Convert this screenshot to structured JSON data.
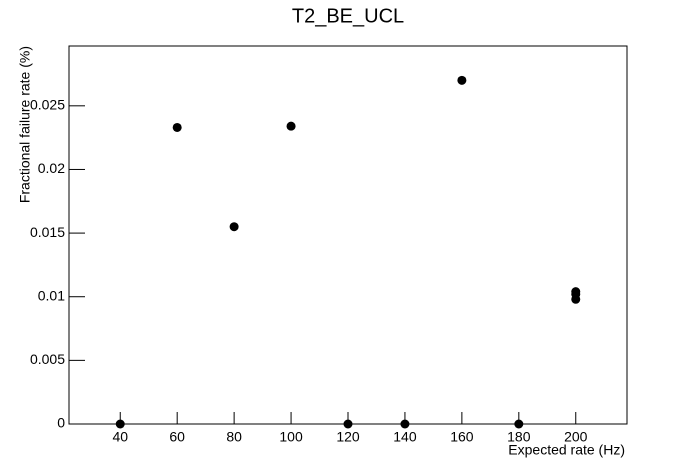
{
  "chart_data": {
    "type": "scatter",
    "title": "T2_BE_UCL",
    "x_label": "Expected rate (Hz)",
    "y_label": "Fractional failure rate (%)",
    "x": [
      40,
      60,
      80,
      100,
      120,
      140,
      160,
      180,
      200,
      200,
      200
    ],
    "y": [
      0,
      0.0233,
      0.0155,
      0.0234,
      0,
      0,
      0.027,
      0,
      0.0104,
      0.0102,
      0.0098
    ],
    "color": "#000000",
    "xlim": [
      22,
      218
    ],
    "ylim": [
      0,
      0.0297
    ],
    "xticks": [
      40,
      60,
      80,
      100,
      120,
      140,
      160,
      180,
      200
    ],
    "yticks": [
      0,
      0.005,
      0.01,
      0.015,
      0.02,
      0.025
    ]
  }
}
